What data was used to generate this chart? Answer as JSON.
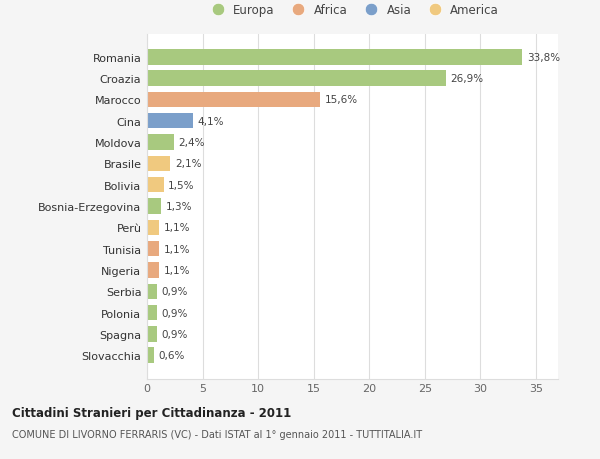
{
  "categories": [
    "Romania",
    "Croazia",
    "Marocco",
    "Cina",
    "Moldova",
    "Brasile",
    "Bolivia",
    "Bosnia-Erzegovina",
    "Perù",
    "Tunisia",
    "Nigeria",
    "Serbia",
    "Polonia",
    "Spagna",
    "Slovacchia"
  ],
  "values": [
    33.8,
    26.9,
    15.6,
    4.1,
    2.4,
    2.1,
    1.5,
    1.3,
    1.1,
    1.1,
    1.1,
    0.9,
    0.9,
    0.9,
    0.6
  ],
  "labels": [
    "33,8%",
    "26,9%",
    "15,6%",
    "4,1%",
    "2,4%",
    "2,1%",
    "1,5%",
    "1,3%",
    "1,1%",
    "1,1%",
    "1,1%",
    "0,9%",
    "0,9%",
    "0,9%",
    "0,6%"
  ],
  "colors": [
    "#a8c97f",
    "#a8c97f",
    "#e8a97e",
    "#7b9fca",
    "#a8c97f",
    "#f0c97f",
    "#f0c97f",
    "#a8c97f",
    "#f0c97f",
    "#e8a97e",
    "#e8a97e",
    "#a8c97f",
    "#a8c97f",
    "#a8c97f",
    "#a8c97f"
  ],
  "continent_colors": {
    "Europa": "#a8c97f",
    "Africa": "#e8a97e",
    "Asia": "#7b9fca",
    "America": "#f0c97f"
  },
  "title_bold": "Cittadini Stranieri per Cittadinanza - 2011",
  "title_sub": "COMUNE DI LIVORNO FERRARIS (VC) - Dati ISTAT al 1° gennaio 2011 - TUTTITALIA.IT",
  "xlim": [
    0,
    37
  ],
  "background_color": "#f5f5f5",
  "plot_background": "#ffffff",
  "grid_color": "#dddddd"
}
